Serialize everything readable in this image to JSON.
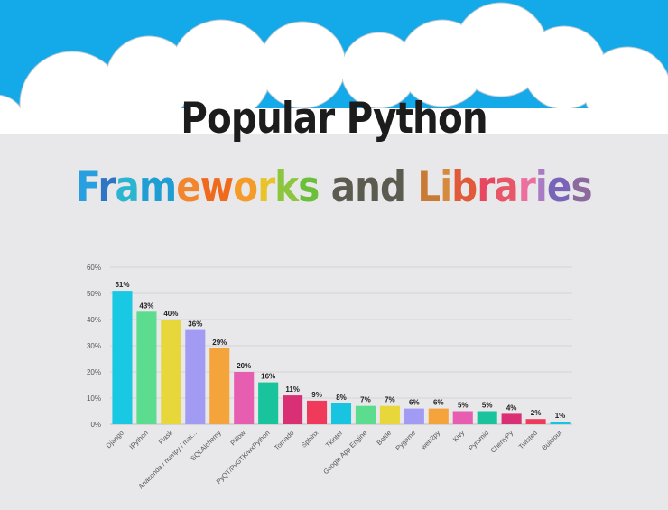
{
  "header": {
    "title_line1": "Popular Python",
    "title_line2_segments": [
      {
        "text": "F",
        "color": "#2a9fe0"
      },
      {
        "text": "r",
        "color": "#2e75c4"
      },
      {
        "text": "a",
        "color": "#2cb5d0"
      },
      {
        "text": "m",
        "color": "#1f9ed4"
      },
      {
        "text": "e",
        "color": "#f2862e"
      },
      {
        "text": "w",
        "color": "#f06a1d"
      },
      {
        "text": "o",
        "color": "#f59b2a"
      },
      {
        "text": "r",
        "color": "#e8c42a"
      },
      {
        "text": "k",
        "color": "#8cc63f"
      },
      {
        "text": "s",
        "color": "#6cbf3b"
      },
      {
        "text": " and ",
        "color": "#5b5b4f"
      },
      {
        "text": "L",
        "color": "#c97b35"
      },
      {
        "text": "i",
        "color": "#d68a3e"
      },
      {
        "text": "b",
        "color": "#e05a3a"
      },
      {
        "text": "r",
        "color": "#e74860"
      },
      {
        "text": "a",
        "color": "#e8566a"
      },
      {
        "text": "r",
        "color": "#ec6fa0"
      },
      {
        "text": "i",
        "color": "#a97bc4"
      },
      {
        "text": "e",
        "color": "#7a64b8"
      },
      {
        "text": "s",
        "color": "#8c6a9e"
      }
    ]
  },
  "colors": {
    "sky": "#14a9e9",
    "background": "#e8e8ea",
    "cloud": "#ffffff"
  },
  "chart_data": {
    "type": "bar",
    "categories": [
      "Django",
      "IPython",
      "Flask",
      "Anaconda / numpy / mat...",
      "SQLAlchemy",
      "Pillow",
      "PyQT/PyGTK/wxPython",
      "Tornado",
      "Sphinx",
      "Tkinter",
      "Google App Engine",
      "Bottle",
      "Pygame",
      "web2py",
      "Kivy",
      "Pyramid",
      "CherryPy",
      "Twisted",
      "Buildout"
    ],
    "values": [
      51,
      43,
      40,
      36,
      29,
      20,
      16,
      11,
      9,
      8,
      7,
      7,
      6,
      6,
      5,
      5,
      4,
      2,
      1
    ],
    "value_labels": [
      "51%",
      "43%",
      "40%",
      "36%",
      "29%",
      "20%",
      "16%",
      "11%",
      "9%",
      "8%",
      "7%",
      "7%",
      "6%",
      "6%",
      "5%",
      "5%",
      "4%",
      "2%",
      "1%"
    ],
    "bar_colors": [
      "#19c9e3",
      "#5cdc8e",
      "#e7d73a",
      "#a29bf3",
      "#f4a43a",
      "#e75db0",
      "#19c49c",
      "#d92f74",
      "#f03a5b",
      "#19c4e0",
      "#5cdc8e",
      "#e7d73a",
      "#a29bf3",
      "#f4a43a",
      "#e75db0",
      "#19c49c",
      "#d92f74",
      "#f03a5b",
      "#19c4e0"
    ],
    "y_ticks": [
      "0%",
      "10%",
      "20%",
      "30%",
      "40%",
      "50%",
      "60%"
    ],
    "ylim": [
      0,
      60
    ],
    "grid": true,
    "title": "",
    "xlabel": "",
    "ylabel": ""
  }
}
